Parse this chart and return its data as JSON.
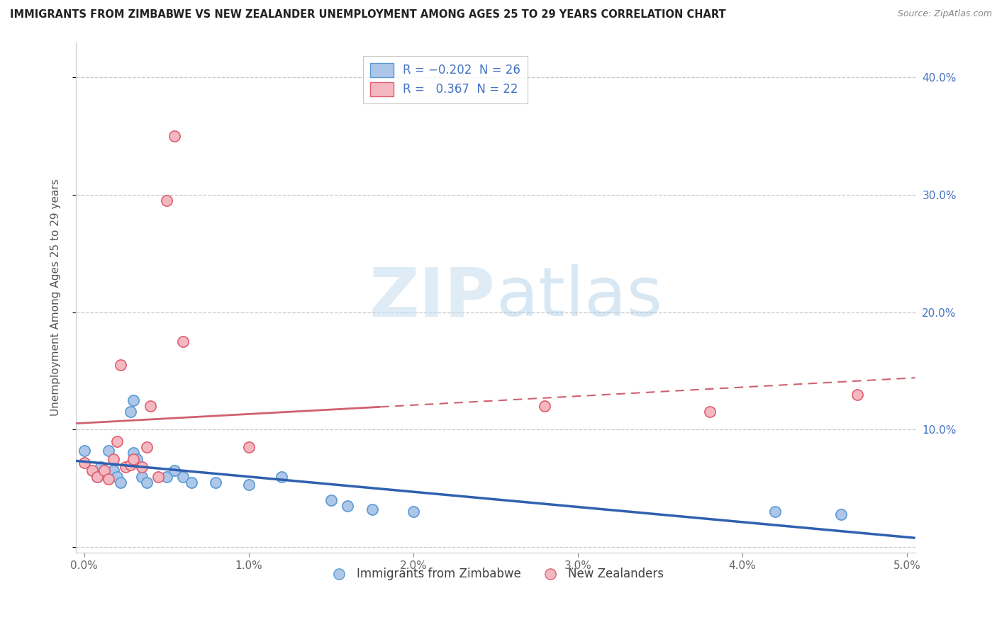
{
  "title": "IMMIGRANTS FROM ZIMBABWE VS NEW ZEALANDER UNEMPLOYMENT AMONG AGES 25 TO 29 YEARS CORRELATION CHART",
  "source": "Source: ZipAtlas.com",
  "ylabel": "Unemployment Among Ages 25 to 29 years",
  "legend_labels": [
    "Immigrants from Zimbabwe",
    "New Zealanders"
  ],
  "r_blue": -0.202,
  "n_blue": 26,
  "r_pink": 0.367,
  "n_pink": 22,
  "blue_scatter": [
    [
      0.0,
      0.082
    ],
    [
      0.0008,
      0.06
    ],
    [
      0.001,
      0.068
    ],
    [
      0.0015,
      0.082
    ],
    [
      0.0018,
      0.065
    ],
    [
      0.002,
      0.06
    ],
    [
      0.0022,
      0.055
    ],
    [
      0.0028,
      0.115
    ],
    [
      0.003,
      0.125
    ],
    [
      0.003,
      0.08
    ],
    [
      0.0032,
      0.075
    ],
    [
      0.0035,
      0.06
    ],
    [
      0.0038,
      0.055
    ],
    [
      0.005,
      0.06
    ],
    [
      0.0055,
      0.065
    ],
    [
      0.006,
      0.06
    ],
    [
      0.0065,
      0.055
    ],
    [
      0.008,
      0.055
    ],
    [
      0.01,
      0.053
    ],
    [
      0.012,
      0.06
    ],
    [
      0.015,
      0.04
    ],
    [
      0.016,
      0.035
    ],
    [
      0.0175,
      0.032
    ],
    [
      0.02,
      0.03
    ],
    [
      0.042,
      0.03
    ],
    [
      0.046,
      0.028
    ]
  ],
  "pink_scatter": [
    [
      0.0,
      0.072
    ],
    [
      0.0005,
      0.065
    ],
    [
      0.0008,
      0.06
    ],
    [
      0.0012,
      0.065
    ],
    [
      0.0015,
      0.058
    ],
    [
      0.0018,
      0.075
    ],
    [
      0.002,
      0.09
    ],
    [
      0.0022,
      0.155
    ],
    [
      0.0025,
      0.068
    ],
    [
      0.0028,
      0.07
    ],
    [
      0.003,
      0.075
    ],
    [
      0.0035,
      0.068
    ],
    [
      0.0038,
      0.085
    ],
    [
      0.004,
      0.12
    ],
    [
      0.0045,
      0.06
    ],
    [
      0.005,
      0.295
    ],
    [
      0.0055,
      0.35
    ],
    [
      0.006,
      0.175
    ],
    [
      0.01,
      0.085
    ],
    [
      0.028,
      0.12
    ],
    [
      0.038,
      0.115
    ],
    [
      0.047,
      0.13
    ]
  ],
  "blue_color": "#aec6e8",
  "blue_edge": "#5b9bd5",
  "pink_color": "#f4b8c1",
  "pink_edge": "#e06070",
  "blue_line_color": "#3060b0",
  "pink_line_color": "#d06070",
  "pink_line_style": "solid",
  "pink_dash_style": "--",
  "watermark_text": "ZIPatlas",
  "xlim": [
    -0.0005,
    0.0505
  ],
  "ylim": [
    -0.005,
    0.43
  ],
  "x_tick_vals": [
    0.0,
    0.01,
    0.02,
    0.03,
    0.04,
    0.05
  ],
  "x_tick_labels": [
    "0.0%",
    "1.0%",
    "2.0%",
    "3.0%",
    "4.0%",
    "5.0%"
  ],
  "y_tick_vals": [
    0.0,
    0.1,
    0.2,
    0.3,
    0.4
  ],
  "y_right_tick_labels": [
    "",
    "10.0%",
    "20.0%",
    "30.0%",
    "40.0%"
  ],
  "background_color": "#ffffff",
  "grid_color": "#c8c8c8"
}
